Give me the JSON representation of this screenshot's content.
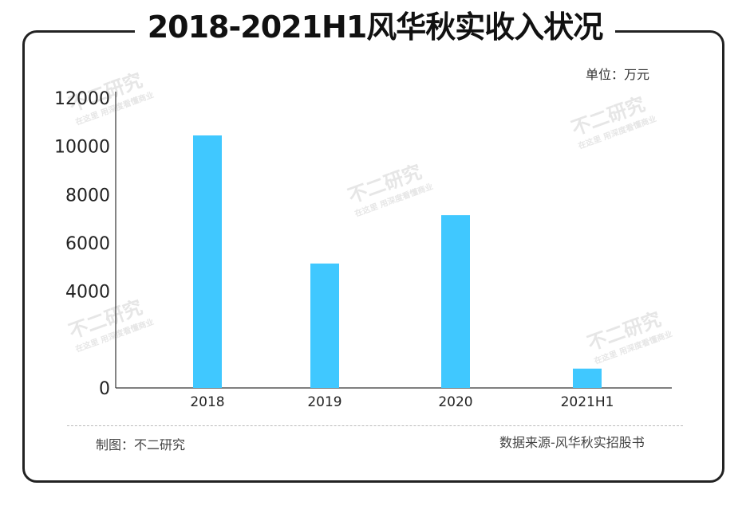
{
  "title": "2018-2021H1风华秋实收入状况",
  "unit_label": "单位：万元",
  "maker_label": "制图：不二研究",
  "source_label": "数据来源-风华秋实招股书",
  "watermark": {
    "main": "不二研究",
    "sub": "在这里 用深度看懂商业"
  },
  "colors": {
    "bar": "#40c8ff",
    "axis": "#333333"
  },
  "chart_data": {
    "type": "bar",
    "title": "2018-2021H1风华秋实收入状况",
    "categories": [
      "2018",
      "2019",
      "2020",
      "2021H1"
    ],
    "values": [
      10450,
      5150,
      7150,
      800
    ],
    "ylim": [
      0,
      12000
    ],
    "yticks": [
      0,
      4000,
      6000,
      8000,
      10000,
      12000
    ],
    "ylabel": "",
    "xlabel": "",
    "grid": false,
    "legend": "none"
  }
}
